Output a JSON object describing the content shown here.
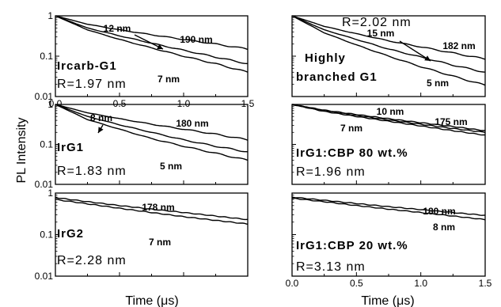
{
  "figure": {
    "ylabel": "PL Intensity",
    "xlabel_left": "Time (μs)",
    "xlabel_right": "Time (μs)"
  },
  "chart_data": [
    {
      "type": "line",
      "panel": "left-top",
      "x_range": [
        0,
        1.5
      ],
      "ylim": [
        0.01,
        1
      ],
      "y_scale": "log",
      "x_ticks": [
        "0.0",
        "0.5",
        "1.0",
        "1.5"
      ],
      "y_ticks": [
        "0.01",
        "0.1",
        "1"
      ],
      "labels": [
        "Ircarb-G1"
      ],
      "r_text": "R=1.97 nm",
      "series": [
        {
          "name": "190 nm",
          "x": [
            0,
            0.25,
            0.5,
            0.75,
            1.0,
            1.25,
            1.5
          ],
          "y": [
            1.0,
            0.62,
            0.45,
            0.34,
            0.26,
            0.2,
            0.15
          ]
        },
        {
          "name": "12 nm",
          "x": [
            0,
            0.25,
            0.5,
            0.75,
            1.0,
            1.25,
            1.5
          ],
          "y": [
            1.0,
            0.5,
            0.32,
            0.21,
            0.14,
            0.095,
            0.065
          ]
        },
        {
          "name": "7 nm",
          "x": [
            0,
            0.25,
            0.5,
            0.75,
            1.0,
            1.25,
            1.5
          ],
          "y": [
            1.0,
            0.45,
            0.26,
            0.16,
            0.1,
            0.065,
            0.04
          ]
        }
      ]
    },
    {
      "type": "line",
      "panel": "left-middle",
      "x_range": [
        0,
        1.5
      ],
      "ylim": [
        0.01,
        1
      ],
      "y_scale": "log",
      "y_ticks": [
        "0.01",
        "0.1",
        "1"
      ],
      "labels": [
        "IrG1"
      ],
      "r_text": "R=1.83 nm",
      "series": [
        {
          "name": "180 nm",
          "x": [
            0,
            0.25,
            0.5,
            0.75,
            1.0,
            1.25,
            1.5
          ],
          "y": [
            1.0,
            0.62,
            0.44,
            0.32,
            0.24,
            0.18,
            0.13
          ]
        },
        {
          "name": "8 nm",
          "x": [
            0,
            0.25,
            0.5,
            0.75,
            1.0,
            1.25,
            1.5
          ],
          "y": [
            1.0,
            0.5,
            0.31,
            0.2,
            0.13,
            0.09,
            0.065
          ]
        },
        {
          "name": "5 nm",
          "x": [
            0,
            0.25,
            0.5,
            0.75,
            1.0,
            1.25,
            1.5
          ],
          "y": [
            1.0,
            0.42,
            0.24,
            0.14,
            0.09,
            0.06,
            0.04
          ]
        }
      ]
    },
    {
      "type": "line",
      "panel": "left-bottom",
      "x_range": [
        0,
        1.5
      ],
      "ylim": [
        0.01,
        1
      ],
      "y_scale": "log",
      "y_ticks": [
        "0.01",
        "0.1",
        "1"
      ],
      "labels": [
        "IrG2"
      ],
      "r_text": "R=2.28 nm",
      "series": [
        {
          "name": "178 nm",
          "x": [
            0,
            0.25,
            0.5,
            0.75,
            1.0,
            1.25,
            1.5
          ],
          "y": [
            0.78,
            0.62,
            0.5,
            0.41,
            0.34,
            0.28,
            0.23
          ]
        },
        {
          "name": "7 nm",
          "x": [
            0,
            0.25,
            0.5,
            0.75,
            1.0,
            1.25,
            1.5
          ],
          "y": [
            0.7,
            0.55,
            0.43,
            0.34,
            0.27,
            0.22,
            0.18
          ]
        }
      ]
    },
    {
      "type": "line",
      "panel": "right-top",
      "x_range": [
        0,
        1.5
      ],
      "ylim": [
        0.01,
        1
      ],
      "y_scale": "log",
      "labels": [
        "Highly",
        "branched G1"
      ],
      "r_text": "R=2.02 nm",
      "series": [
        {
          "name": "182 nm",
          "x": [
            0,
            0.25,
            0.5,
            0.75,
            1.0,
            1.25,
            1.5
          ],
          "y": [
            1.0,
            0.55,
            0.36,
            0.24,
            0.17,
            0.12,
            0.085
          ]
        },
        {
          "name": "15 nm",
          "x": [
            0,
            0.25,
            0.5,
            0.75,
            1.0,
            1.25,
            1.5
          ],
          "y": [
            1.0,
            0.45,
            0.26,
            0.15,
            0.095,
            0.06,
            0.04
          ]
        },
        {
          "name": "5 nm",
          "x": [
            0,
            0.25,
            0.5,
            0.75,
            1.0,
            1.25,
            1.5
          ],
          "y": [
            1.0,
            0.38,
            0.19,
            0.1,
            0.055,
            0.032,
            0.019
          ]
        }
      ]
    },
    {
      "type": "line",
      "panel": "right-middle",
      "x_range": [
        0,
        1.5
      ],
      "ylim": [
        0.01,
        1
      ],
      "y_scale": "log",
      "labels": [
        "IrG1:CBP 80 wt.%"
      ],
      "r_text": "R=1.96 nm",
      "series": [
        {
          "name": "175 nm",
          "x": [
            0,
            0.25,
            0.5,
            0.75,
            1.0,
            1.25,
            1.5
          ],
          "y": [
            1.0,
            0.72,
            0.56,
            0.44,
            0.35,
            0.28,
            0.22
          ]
        },
        {
          "name": "10 nm",
          "x": [
            0,
            0.25,
            0.5,
            0.75,
            1.0,
            1.25,
            1.5
          ],
          "y": [
            1.0,
            0.7,
            0.53,
            0.41,
            0.32,
            0.25,
            0.2
          ]
        },
        {
          "name": "7 nm",
          "x": [
            0,
            0.25,
            0.5,
            0.75,
            1.0,
            1.25,
            1.5
          ],
          "y": [
            1.0,
            0.67,
            0.5,
            0.38,
            0.29,
            0.22,
            0.17
          ]
        }
      ]
    },
    {
      "type": "line",
      "panel": "right-bottom",
      "x_range": [
        0,
        1.5
      ],
      "ylim": [
        0.01,
        1
      ],
      "y_scale": "log",
      "labels": [
        "IrG1:CBP 20 wt.%"
      ],
      "r_text": "R=3.13 nm",
      "series": [
        {
          "name": "180 nm",
          "x": [
            0,
            0.25,
            0.5,
            0.75,
            1.0,
            1.25,
            1.5
          ],
          "y": [
            0.8,
            0.67,
            0.56,
            0.47,
            0.4,
            0.34,
            0.29
          ]
        },
        {
          "name": "8 nm",
          "x": [
            0,
            0.25,
            0.5,
            0.75,
            1.0,
            1.25,
            1.5
          ],
          "y": [
            0.75,
            0.62,
            0.5,
            0.41,
            0.34,
            0.28,
            0.23
          ]
        }
      ]
    }
  ]
}
